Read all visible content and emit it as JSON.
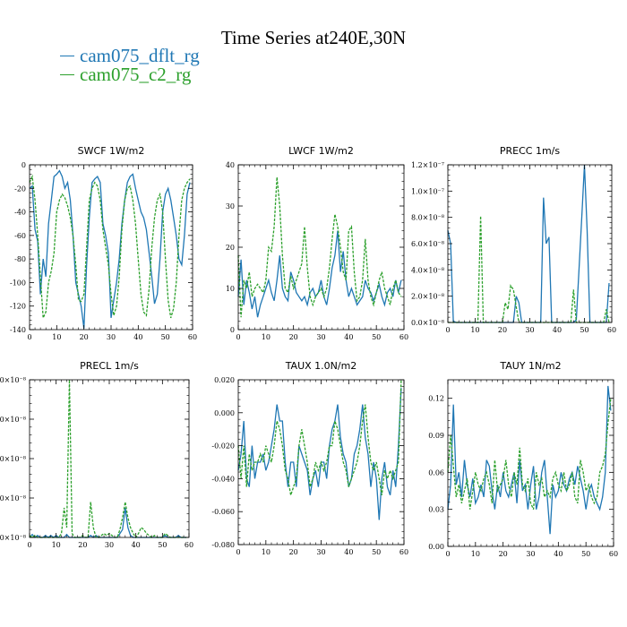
{
  "title": "Time Series at240E,30N",
  "legend": [
    {
      "label": "cam075_dflt_rg",
      "color": "#1f77b4"
    },
    {
      "label": "cam075_c2_rg",
      "color": "#2ca02c"
    }
  ],
  "chart_data": [
    {
      "type": "line",
      "title": "SWCF   1W/m2",
      "xlim": [
        0,
        60
      ],
      "ylim": [
        -140,
        0
      ],
      "xticks": [
        0,
        10,
        20,
        30,
        40,
        50,
        60
      ],
      "xtick_labels": [
        "0",
        "10",
        "20",
        "30",
        "40",
        "50",
        "60"
      ],
      "yticks": [
        0,
        -20,
        -40,
        -60,
        -80,
        -100,
        -120,
        -140
      ],
      "ytick_labels": [
        "0",
        "-20",
        "-40",
        "-60",
        "-80",
        "-100",
        "-120",
        "-140"
      ],
      "series": [
        {
          "name": "cam075_dflt_rg",
          "values": [
            -20,
            -18,
            -55,
            -65,
            -110,
            -80,
            -95,
            -50,
            -30,
            -10,
            -8,
            -5,
            -10,
            -20,
            -15,
            -30,
            -60,
            -100,
            -110,
            -120,
            -139,
            -85,
            -45,
            -15,
            -12,
            -10,
            -15,
            -50,
            -60,
            -75,
            -130,
            -115,
            -100,
            -80,
            -50,
            -30,
            -15,
            -10,
            -8,
            -20,
            -30,
            -40,
            -45,
            -55,
            -75,
            -95,
            -118,
            -110,
            -80,
            -40,
            -25,
            -20,
            -30,
            -45,
            -60,
            -80,
            -85,
            -60,
            -25,
            -15
          ]
        },
        {
          "name": "cam075_c2_rg",
          "values": [
            -15,
            -10,
            -30,
            -60,
            -95,
            -130,
            -125,
            -100,
            -90,
            -75,
            -40,
            -30,
            -25,
            -28,
            -35,
            -45,
            -60,
            -85,
            -115,
            -116,
            -110,
            -70,
            -30,
            -20,
            -15,
            -18,
            -30,
            -55,
            -70,
            -85,
            -110,
            -128,
            -120,
            -95,
            -55,
            -30,
            -20,
            -18,
            -30,
            -50,
            -80,
            -110,
            -125,
            -128,
            -105,
            -70,
            -45,
            -30,
            -25,
            -40,
            -80,
            -115,
            -130,
            -122,
            -100,
            -60,
            -30,
            -20,
            -15,
            -12
          ]
        }
      ]
    },
    {
      "type": "line",
      "title": "LWCF   1W/m2",
      "xlim": [
        0,
        60
      ],
      "ylim": [
        0,
        40
      ],
      "xticks": [
        0,
        10,
        20,
        30,
        40,
        50,
        60
      ],
      "xtick_labels": [
        "0",
        "10",
        "20",
        "30",
        "40",
        "50",
        "60"
      ],
      "yticks": [
        0,
        10,
        20,
        30,
        40
      ],
      "ytick_labels": [
        "0",
        "10",
        "20",
        "30",
        "40"
      ],
      "series": [
        {
          "name": "cam075_dflt_rg",
          "values": [
            8,
            17,
            6,
            12,
            9,
            5,
            8,
            3,
            6,
            8,
            10,
            12,
            9,
            7,
            12,
            18,
            10,
            8,
            7,
            14,
            12,
            9,
            8,
            7,
            8,
            6,
            9,
            10,
            8,
            9,
            12,
            8,
            6,
            10,
            15,
            18,
            24,
            14,
            19,
            12,
            8,
            10,
            8,
            6,
            7,
            8,
            12,
            10,
            9,
            7,
            9,
            11,
            8,
            6,
            9,
            10,
            8,
            12,
            9,
            12
          ]
        },
        {
          "name": "cam075_c2_rg",
          "values": [
            18,
            3,
            12,
            10,
            14,
            8,
            10,
            11,
            10,
            9,
            12,
            20,
            19,
            25,
            37,
            30,
            18,
            10,
            9,
            13,
            10,
            12,
            14,
            16,
            25,
            15,
            8,
            6,
            8,
            9,
            10,
            8,
            10,
            15,
            22,
            28,
            25,
            20,
            14,
            12,
            24,
            25,
            14,
            7,
            8,
            12,
            22,
            12,
            8,
            6,
            9,
            12,
            14,
            10,
            8,
            6,
            10,
            12,
            9,
            8
          ]
        }
      ]
    },
    {
      "type": "line",
      "title": "PRECC   1m/s",
      "xlim": [
        0,
        60
      ],
      "ylim": [
        0,
        1.2e-07
      ],
      "xticks": [
        0,
        10,
        20,
        30,
        40,
        50,
        60
      ],
      "xtick_labels": [
        "0",
        "10",
        "20",
        "30",
        "40",
        "50",
        "60"
      ],
      "yticks": [
        0,
        2e-08,
        4e-08,
        6e-08,
        8e-08,
        1e-07,
        1.2e-07
      ],
      "ytick_labels": [
        "0.0×10⁻⁸",
        "2.0×10⁻⁸",
        "4.0×10⁻⁸",
        "6.0×10⁻⁸",
        "8.0×10⁻⁸",
        "1.0×10⁻⁷",
        "1.2×10⁻⁷"
      ],
      "series": [
        {
          "name": "cam075_dflt_rg",
          "values": [
            7e-08,
            6e-08,
            1e-09,
            0,
            0,
            0,
            0,
            0,
            0,
            0,
            0,
            0,
            0,
            0,
            0,
            0,
            0,
            0,
            0,
            0,
            0,
            0,
            0,
            0,
            0,
            2e-08,
            1.5e-08,
            0,
            0,
            0,
            0,
            0,
            0,
            0,
            0,
            9.5e-08,
            6e-08,
            6.5e-08,
            0,
            0,
            0,
            0,
            0,
            0,
            0,
            0,
            0,
            2e-09,
            4e-08,
            8e-08,
            1.2e-07,
            7e-08,
            0,
            0,
            0,
            0,
            0,
            0,
            0,
            3e-08
          ]
        },
        {
          "name": "cam075_c2_rg",
          "values": [
            0,
            0,
            0,
            0,
            0,
            0,
            0,
            0,
            0,
            0,
            0,
            0,
            8.1e-08,
            0,
            0,
            0,
            0,
            0,
            0,
            0,
            0,
            1.5e-08,
            1e-08,
            2.8e-08,
            2.5e-08,
            1.2e-08,
            0,
            0,
            0,
            0,
            0,
            0,
            0,
            0,
            0,
            0,
            0,
            0,
            0,
            0,
            0,
            0,
            0,
            0,
            0,
            0,
            2.5e-08,
            0,
            0,
            0,
            0,
            0,
            0,
            0,
            0,
            0,
            0,
            0,
            1e-08,
            0
          ]
        }
      ]
    },
    {
      "type": "line",
      "title": "PRECL   1m/s",
      "xlim": [
        0,
        60
      ],
      "ylim": [
        0,
        8e-08
      ],
      "xticks": [
        0,
        10,
        20,
        30,
        40,
        50,
        60
      ],
      "xtick_labels": [
        "0",
        "10",
        "20",
        "30",
        "40",
        "50",
        "60"
      ],
      "yticks": [
        0,
        2e-08,
        4e-08,
        6e-08,
        8e-08
      ],
      "ytick_labels": [
        "0.0×10⁻⁸",
        "2.0×10⁻⁸",
        "4.0×10⁻⁸",
        "6.0×10⁻⁸",
        "8.0×10⁻⁸"
      ],
      "series": [
        {
          "name": "cam075_dflt_rg",
          "values": [
            0,
            1.5e-09,
            0,
            1e-09,
            0,
            0,
            1e-09,
            0,
            1e-09,
            0,
            1e-09,
            0,
            0,
            0,
            1.5e-09,
            0,
            0,
            0,
            0,
            0,
            0,
            0,
            0,
            1e-09,
            0,
            1e-09,
            0,
            0,
            0,
            0,
            0,
            0,
            0,
            0,
            2e-09,
            4e-09,
            1.5e-08,
            5e-09,
            1e-09,
            0,
            0,
            0,
            0,
            0,
            0,
            0,
            0,
            0,
            0,
            0,
            0,
            1e-09,
            0,
            0,
            0,
            0,
            1e-09,
            0,
            0,
            0
          ]
        },
        {
          "name": "cam075_c2_rg",
          "values": [
            1e-09,
            0,
            1e-09,
            0,
            0,
            0,
            0,
            0,
            0,
            0,
            0,
            0,
            2e-09,
            1.5e-08,
            5e-09,
            8e-08,
            2e-09,
            0,
            0,
            0,
            1e-09,
            0,
            0,
            1.8e-08,
            5e-09,
            0,
            0,
            1e-09,
            2e-09,
            1e-09,
            2e-09,
            1e-09,
            0,
            0,
            4e-09,
            1e-08,
            1.8e-08,
            1e-08,
            5e-09,
            2e-09,
            0,
            2e-09,
            5e-09,
            4e-09,
            2e-09,
            1e-09,
            0,
            1e-09,
            0,
            0,
            0,
            2e-09,
            1e-09,
            0,
            0,
            0,
            0,
            0,
            0,
            0
          ]
        }
      ]
    },
    {
      "type": "line",
      "title": "TAUX   1.0N/m2",
      "xlim": [
        0,
        60
      ],
      "ylim": [
        -0.08,
        0.02
      ],
      "xticks": [
        0,
        10,
        20,
        30,
        40,
        50,
        60
      ],
      "xtick_labels": [
        "0",
        "10",
        "20",
        "30",
        "40",
        "50",
        "60"
      ],
      "yticks": [
        0.02,
        0,
        -0.02,
        -0.04,
        -0.06,
        -0.08
      ],
      "ytick_labels": [
        "0.020",
        "0.000",
        "-0.020",
        "-0.040",
        "-0.060",
        "-0.080"
      ],
      "series": [
        {
          "name": "cam075_dflt_rg",
          "values": [
            -0.035,
            -0.025,
            -0.005,
            -0.04,
            -0.045,
            -0.02,
            -0.04,
            -0.03,
            -0.03,
            -0.025,
            -0.035,
            -0.03,
            -0.02,
            -0.01,
            0.005,
            -0.005,
            -0.005,
            -0.03,
            -0.045,
            -0.03,
            -0.03,
            -0.045,
            -0.02,
            -0.025,
            -0.03,
            -0.035,
            -0.05,
            -0.04,
            -0.035,
            -0.045,
            -0.03,
            -0.03,
            -0.04,
            -0.02,
            -0.01,
            -0.005,
            0.005,
            -0.015,
            -0.025,
            -0.03,
            -0.045,
            -0.04,
            -0.025,
            -0.02,
            -0.01,
            0.005,
            -0.015,
            -0.025,
            -0.045,
            -0.03,
            -0.04,
            -0.065,
            -0.04,
            -0.03,
            -0.045,
            -0.05,
            -0.035,
            -0.045,
            -0.02,
            0.015
          ]
        },
        {
          "name": "cam075_c2_rg",
          "values": [
            -0.02,
            -0.04,
            -0.02,
            -0.045,
            -0.025,
            -0.035,
            -0.03,
            -0.03,
            -0.025,
            -0.03,
            -0.02,
            -0.025,
            -0.03,
            -0.02,
            -0.005,
            -0.01,
            -0.02,
            -0.035,
            -0.04,
            -0.05,
            -0.045,
            -0.04,
            -0.02,
            -0.01,
            -0.02,
            -0.03,
            -0.045,
            -0.04,
            -0.03,
            -0.035,
            -0.03,
            -0.035,
            -0.03,
            -0.02,
            -0.02,
            -0.005,
            -0.01,
            -0.02,
            -0.03,
            -0.035,
            -0.045,
            -0.04,
            -0.035,
            -0.03,
            -0.02,
            -0.005,
            0.005,
            -0.015,
            -0.03,
            -0.035,
            -0.03,
            -0.04,
            -0.05,
            -0.035,
            -0.04,
            -0.035,
            -0.04,
            -0.035,
            -0.03,
            0.02
          ]
        }
      ]
    },
    {
      "type": "line",
      "title": "TAUY   1N/m2",
      "xlim": [
        0,
        60
      ],
      "ylim": [
        0,
        0.135
      ],
      "xticks": [
        0,
        10,
        20,
        30,
        40,
        50,
        60
      ],
      "xtick_labels": [
        "0",
        "10",
        "20",
        "30",
        "40",
        "50",
        "60"
      ],
      "yticks": [
        0,
        0.03,
        0.06,
        0.09,
        0.12
      ],
      "ytick_labels": [
        "0.00",
        "0.03",
        "0.06",
        "0.09",
        "0.12"
      ],
      "series": [
        {
          "name": "cam075_dflt_rg",
          "values": [
            0.03,
            0.05,
            0.115,
            0.05,
            0.06,
            0.04,
            0.07,
            0.05,
            0.04,
            0.055,
            0.035,
            0.04,
            0.05,
            0.04,
            0.07,
            0.065,
            0.045,
            0.03,
            0.05,
            0.04,
            0.06,
            0.045,
            0.04,
            0.05,
            0.06,
            0.035,
            0.07,
            0.045,
            0.05,
            0.03,
            0.05,
            0.065,
            0.03,
            0.04,
            0.06,
            0.07,
            0.04,
            0.01,
            0.05,
            0.04,
            0.045,
            0.06,
            0.05,
            0.045,
            0.055,
            0.06,
            0.05,
            0.065,
            0.055,
            0.045,
            0.03,
            0.045,
            0.05,
            0.04,
            0.035,
            0.03,
            0.04,
            0.06,
            0.13,
            0.11
          ]
        },
        {
          "name": "cam075_c2_rg",
          "values": [
            0.06,
            0.09,
            0.065,
            0.04,
            0.05,
            0.035,
            0.045,
            0.055,
            0.03,
            0.045,
            0.06,
            0.05,
            0.045,
            0.055,
            0.06,
            0.05,
            0.035,
            0.07,
            0.045,
            0.05,
            0.055,
            0.07,
            0.05,
            0.04,
            0.06,
            0.05,
            0.08,
            0.05,
            0.045,
            0.055,
            0.035,
            0.03,
            0.06,
            0.05,
            0.055,
            0.04,
            0.045,
            0.04,
            0.055,
            0.06,
            0.05,
            0.045,
            0.06,
            0.045,
            0.05,
            0.06,
            0.04,
            0.035,
            0.07,
            0.06,
            0.045,
            0.05,
            0.04,
            0.035,
            0.04,
            0.06,
            0.065,
            0.075,
            0.1,
            0.12
          ]
        }
      ]
    }
  ]
}
